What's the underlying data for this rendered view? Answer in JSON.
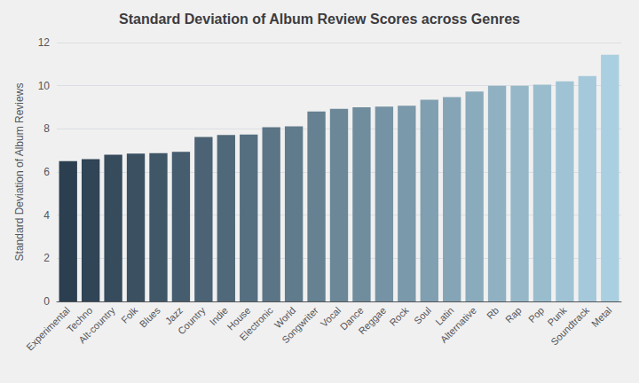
{
  "chart_data": {
    "type": "bar",
    "title": "Standard Deviation of Album Review Scores across Genres",
    "ylabel": "Standard Deviation of Album Reviews",
    "categories": [
      "Experimental",
      "Techno",
      "Alt-country",
      "Folk",
      "Blues",
      "Jazz",
      "Country",
      "Indie",
      "House",
      "Electronic",
      "World",
      "Songwriter",
      "Vocal",
      "Dance",
      "Reggae",
      "Rock",
      "Soul",
      "Latin",
      "Alternative",
      "Rb",
      "Rap",
      "Pop",
      "Punk",
      "Soundtrack",
      "Metal"
    ],
    "values": [
      6.5,
      6.6,
      6.8,
      6.85,
      6.87,
      6.93,
      7.62,
      7.72,
      7.74,
      8.08,
      8.12,
      8.8,
      8.93,
      9.0,
      9.03,
      9.07,
      9.35,
      9.47,
      9.73,
      10.0,
      10.0,
      10.05,
      10.2,
      10.45,
      11.43
    ],
    "colors": [
      "#2b3f50",
      "#304556",
      "#364b5c",
      "#3b5162",
      "#405768",
      "#455d6e",
      "#4b6374",
      "#50697a",
      "#556f80",
      "#5b7586",
      "#607b8c",
      "#658192",
      "#6b8798",
      "#708d9e",
      "#7593a4",
      "#7a99aa",
      "#809fb0",
      "#85a5b6",
      "#8aabbc",
      "#90b1c2",
      "#95b7c8",
      "#9abdce",
      "#9fc3d4",
      "#a5c9da",
      "#aacfe0"
    ],
    "ylim": [
      0,
      12
    ],
    "yticks": [
      0,
      2,
      4,
      6,
      8,
      10,
      12
    ],
    "grid": true
  }
}
